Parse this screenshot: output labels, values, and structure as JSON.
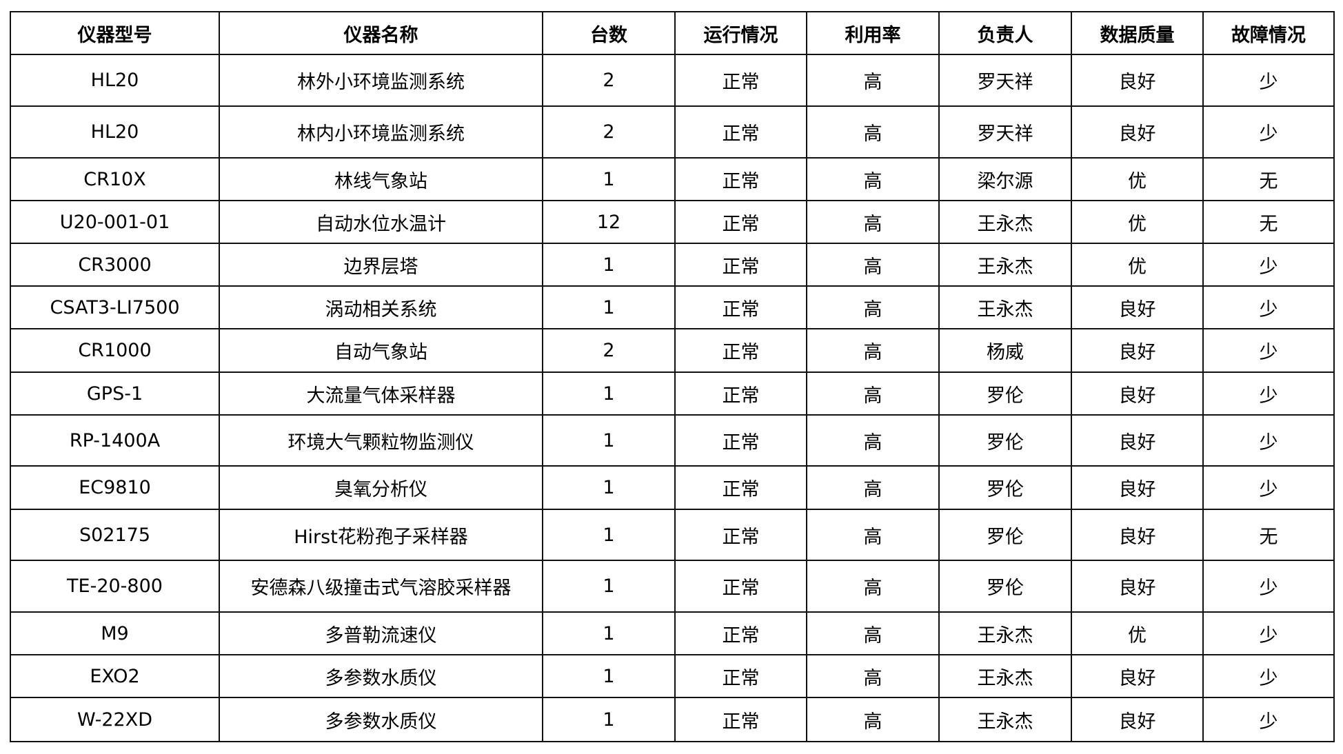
{
  "table": {
    "headers": [
      "仪器型号",
      "仪器名称",
      "台数",
      "运行情况",
      "利用率",
      "负责人",
      "数据质量",
      "故障情况"
    ],
    "rows": [
      [
        "HL20",
        "林外小环境监测系统",
        "2",
        "正常",
        "高",
        "罗天祥",
        "良好",
        "少"
      ],
      [
        "HL20",
        "林内小环境监测系统",
        "2",
        "正常",
        "高",
        "罗天祥",
        "良好",
        "少"
      ],
      [
        "CR10X",
        "林线气象站",
        "1",
        "正常",
        "高",
        "梁尔源",
        "优",
        "无"
      ],
      [
        "U20-001-01",
        "自动水位水温计",
        "12",
        "正常",
        "高",
        "王永杰",
        "优",
        "无"
      ],
      [
        "CR3000",
        "边界层塔",
        "1",
        "正常",
        "高",
        "王永杰",
        "优",
        "少"
      ],
      [
        "CSAT3-LI7500",
        "涡动相关系统",
        "1",
        "正常",
        "高",
        "王永杰",
        "良好",
        "少"
      ],
      [
        "CR1000",
        "自动气象站",
        "2",
        "正常",
        "高",
        "杨威",
        "良好",
        "少"
      ],
      [
        "GPS-1",
        "大流量气体采样器",
        "1",
        "正常",
        "高",
        "罗伦",
        "良好",
        "少"
      ],
      [
        "RP-1400A",
        "环境大气颗粒物监测仪",
        "1",
        "正常",
        "高",
        "罗伦",
        "良好",
        "少"
      ],
      [
        "EC9810",
        "臭氧分析仪",
        "1",
        "正常",
        "高",
        "罗伦",
        "良好",
        "少"
      ],
      [
        "S02175",
        "Hirst花粉孢子采样器",
        "1",
        "正常",
        "高",
        "罗伦",
        "良好",
        "无"
      ],
      [
        "TE-20-800",
        "安德森八级撞击式气溶胶采样器",
        "1",
        "正常",
        "高",
        "罗伦",
        "良好",
        "少"
      ],
      [
        "M9",
        "多普勒流速仪",
        "1",
        "正常",
        "高",
        "王永杰",
        "优",
        "少"
      ],
      [
        "EXO2",
        "多参数水质仪",
        "1",
        "正常",
        "高",
        "王永杰",
        "良好",
        "少"
      ],
      [
        "W-22XD",
        "多参数水质仪",
        "1",
        "正常",
        "高",
        "王永杰",
        "良好",
        "少"
      ]
    ]
  }
}
